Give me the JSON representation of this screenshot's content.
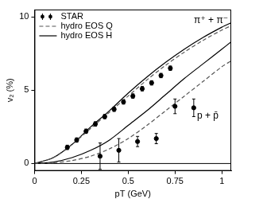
{
  "chart_data": {
    "type": "scatter",
    "x_label": "pT (GeV)",
    "y_label": "v₂ (%)",
    "xlim": [
      0,
      1.05
    ],
    "ylim": [
      -0.5,
      10.5
    ],
    "xticks": [
      0,
      0.25,
      0.5,
      0.75,
      1
    ],
    "yticks": [
      0,
      5,
      10
    ],
    "grid": false,
    "legend": "upper left",
    "annotations": [
      "π⁺ + π⁻",
      "p + p̄"
    ],
    "series": [
      {
        "name": "STAR",
        "type": "scatter",
        "marker": "circle",
        "color": "#000000",
        "x": [
          0.175,
          0.225,
          0.275,
          0.325,
          0.375,
          0.425,
          0.475,
          0.525,
          0.575,
          0.625,
          0.675,
          0.725
        ],
        "values": [
          1.1,
          1.6,
          2.2,
          2.7,
          3.2,
          3.7,
          4.2,
          4.6,
          5.1,
          5.5,
          6.0,
          6.5
        ],
        "errors": [
          0.15,
          0.15,
          0.15,
          0.15,
          0.15,
          0.15,
          0.15,
          0.15,
          0.15,
          0.15,
          0.15,
          0.15
        ]
      },
      {
        "name": "STAR",
        "type": "scatter",
        "marker": "circle",
        "color": "#000000",
        "x": [
          0.35,
          0.45,
          0.55,
          0.65,
          0.75,
          0.85
        ],
        "values": [
          0.5,
          0.9,
          1.5,
          1.7,
          3.9,
          3.8
        ],
        "errors": [
          0.9,
          0.8,
          0.35,
          0.35,
          0.5,
          0.6
        ]
      },
      {
        "name": "hydro EOS Q",
        "type": "line",
        "line_style": "dashed",
        "color": "#555555",
        "x": [
          0,
          0.1,
          0.2,
          0.3,
          0.4,
          0.5,
          0.6,
          0.7,
          0.8,
          0.9,
          1.0,
          1.05
        ],
        "values": [
          0,
          0.4,
          1.3,
          2.4,
          3.5,
          4.6,
          5.7,
          6.7,
          7.6,
          8.4,
          9.1,
          9.4
        ]
      },
      {
        "name": "hydro EOS Q",
        "type": "line",
        "line_style": "dashed",
        "color": "#555555",
        "x": [
          0,
          0.1,
          0.2,
          0.3,
          0.4,
          0.5,
          0.6,
          0.7,
          0.8,
          0.9,
          1.0,
          1.05
        ],
        "values": [
          0,
          0.05,
          0.2,
          0.5,
          1.0,
          1.7,
          2.6,
          3.6,
          4.6,
          5.6,
          6.6,
          7.0
        ]
      },
      {
        "name": "hydro EOS H",
        "type": "line",
        "line_style": "solid",
        "color": "#000000",
        "x": [
          0,
          0.1,
          0.2,
          0.3,
          0.4,
          0.5,
          0.6,
          0.7,
          0.8,
          0.9,
          1.0,
          1.05
        ],
        "values": [
          0,
          0.4,
          1.3,
          2.5,
          3.6,
          4.8,
          5.9,
          6.9,
          7.8,
          8.6,
          9.3,
          9.6
        ]
      },
      {
        "name": "hydro EOS H",
        "type": "line",
        "line_style": "solid",
        "color": "#000000",
        "x": [
          0,
          0.1,
          0.2,
          0.3,
          0.4,
          0.5,
          0.6,
          0.7,
          0.8,
          0.9,
          1.0,
          1.05
        ],
        "values": [
          0,
          0.1,
          0.4,
          0.9,
          1.6,
          2.6,
          3.6,
          4.7,
          5.8,
          6.8,
          7.8,
          8.3
        ]
      }
    ]
  }
}
